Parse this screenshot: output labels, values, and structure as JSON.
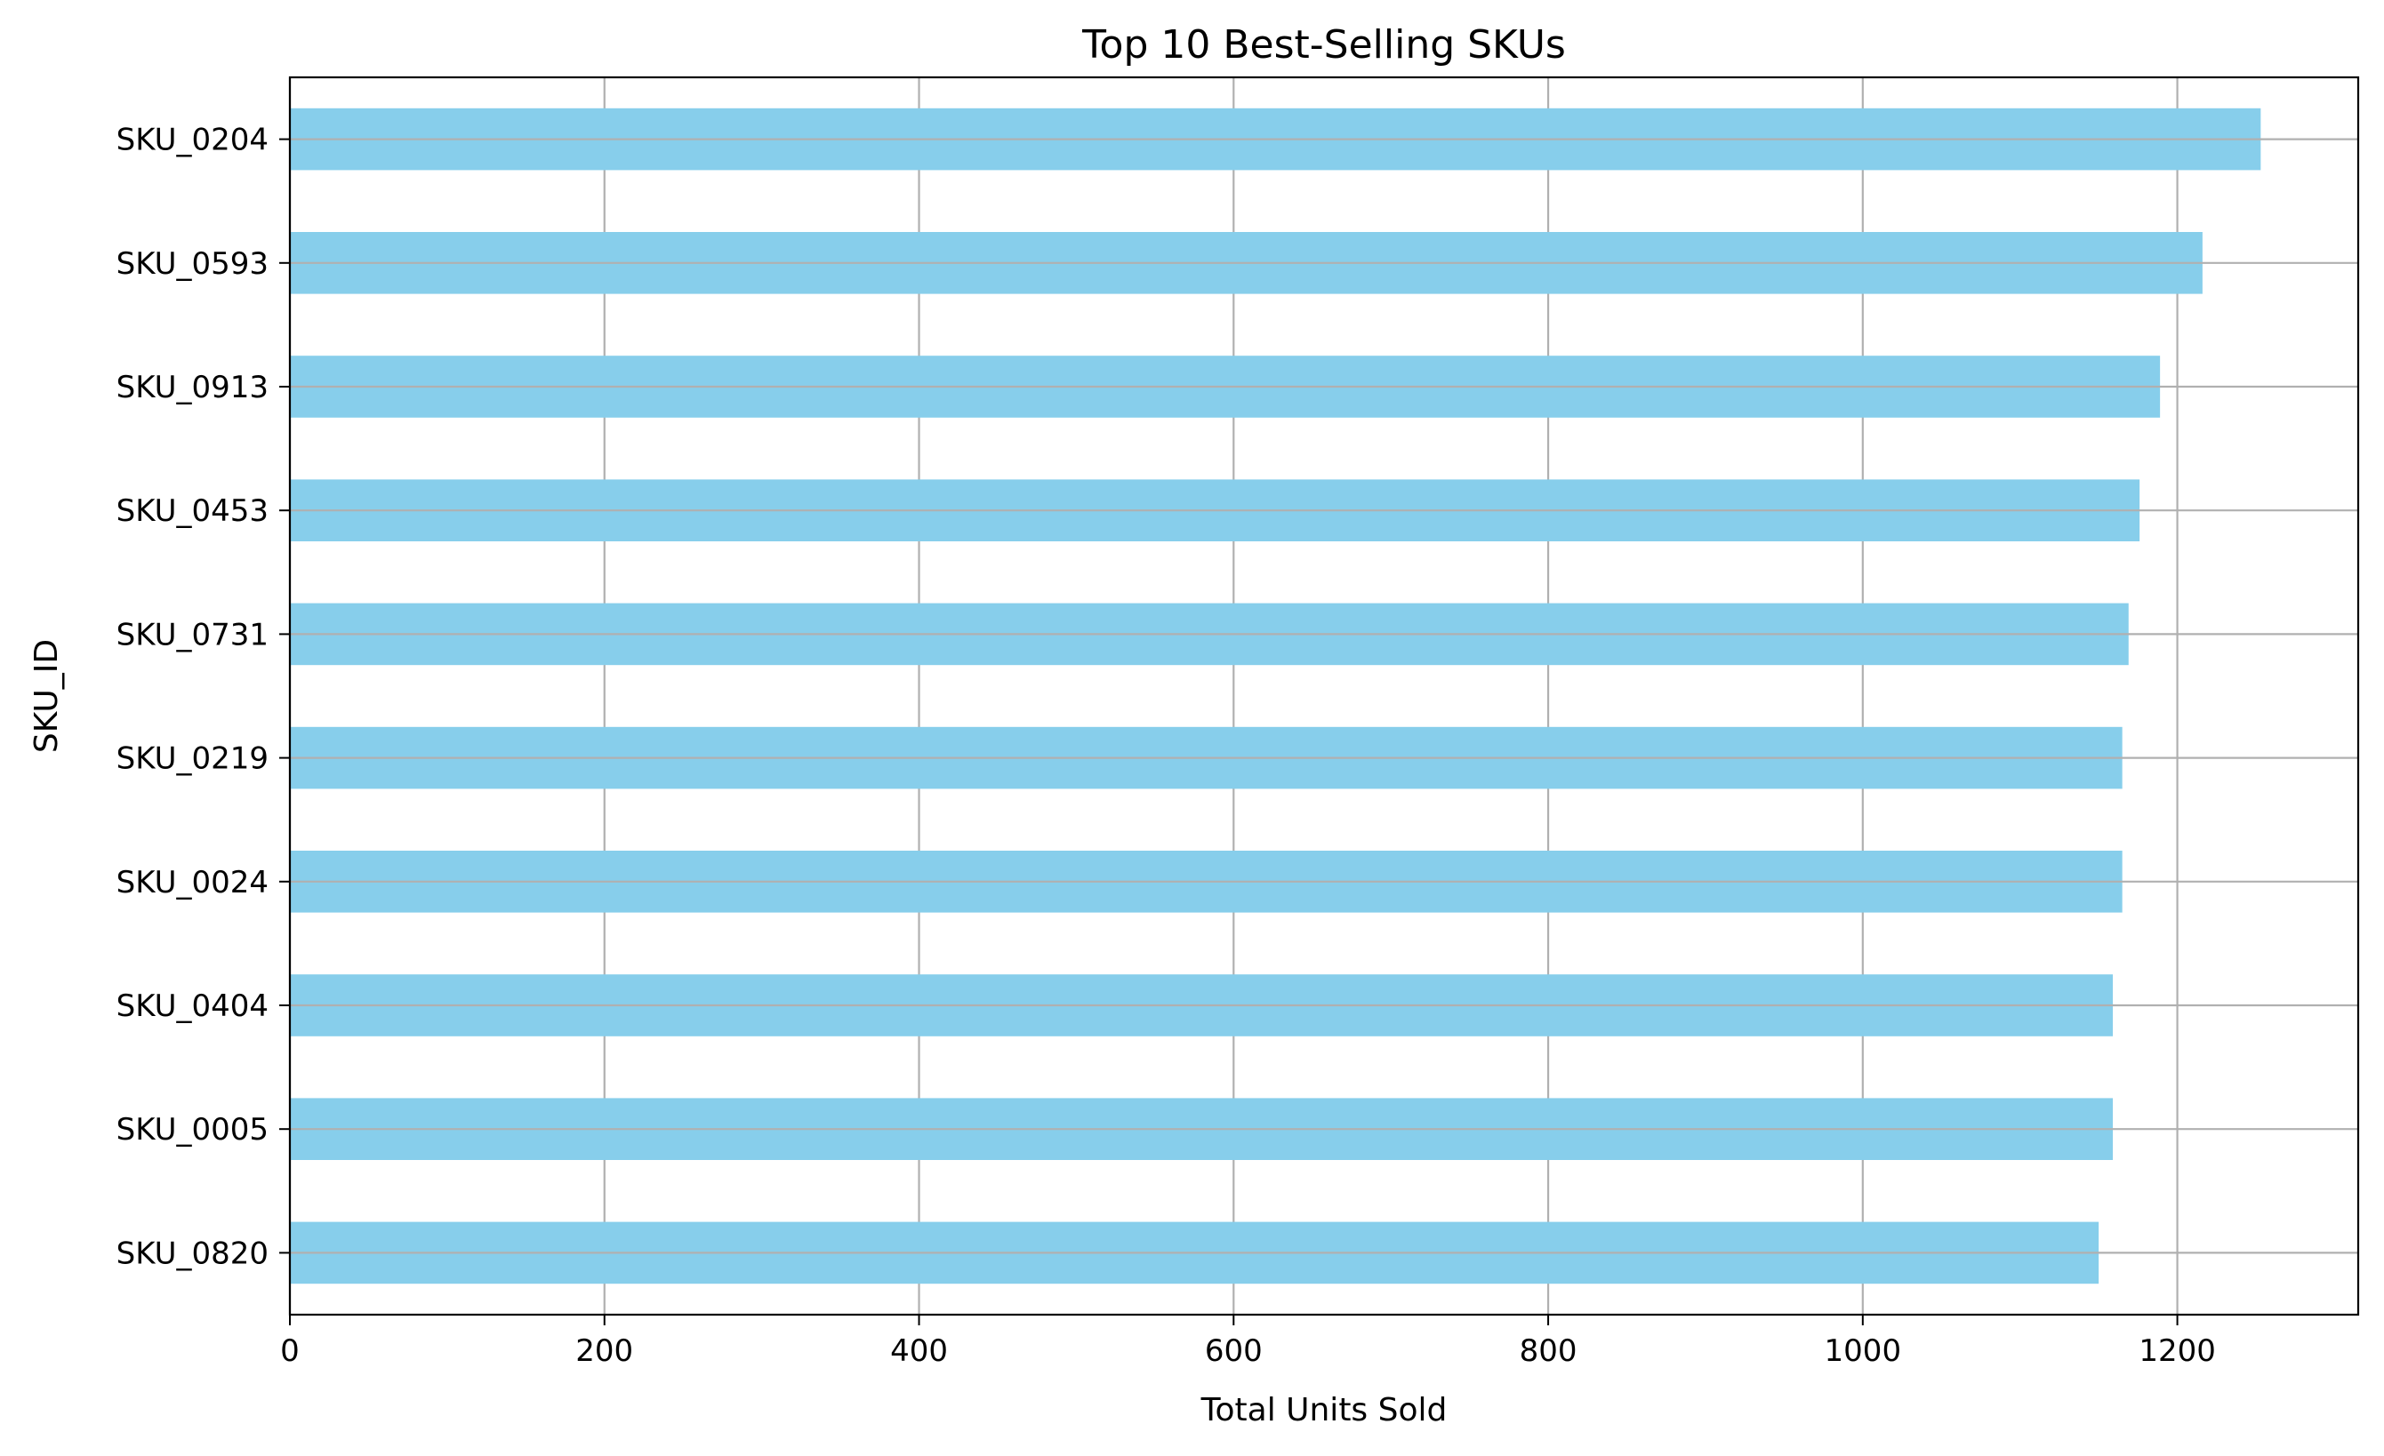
{
  "chart_data": {
    "type": "bar",
    "orientation": "horizontal",
    "title": "Top 10 Best-Selling SKUs",
    "xlabel": "Total Units Sold",
    "ylabel": "SKU_ID",
    "categories": [
      "SKU_0204",
      "SKU_0593",
      "SKU_0913",
      "SKU_0453",
      "SKU_0731",
      "SKU_0219",
      "SKU_0024",
      "SKU_0404",
      "SKU_0005",
      "SKU_0820"
    ],
    "values": [
      1253,
      1216,
      1189,
      1176,
      1169,
      1165,
      1165,
      1159,
      1159,
      1150
    ],
    "xlim": [
      0,
      1315
    ],
    "xticks": [
      "0",
      "200",
      "400",
      "600",
      "800",
      "1000",
      "1200"
    ],
    "grid": true,
    "bar_color": "#87ceeb",
    "grid_color": "#b0b0b0"
  }
}
